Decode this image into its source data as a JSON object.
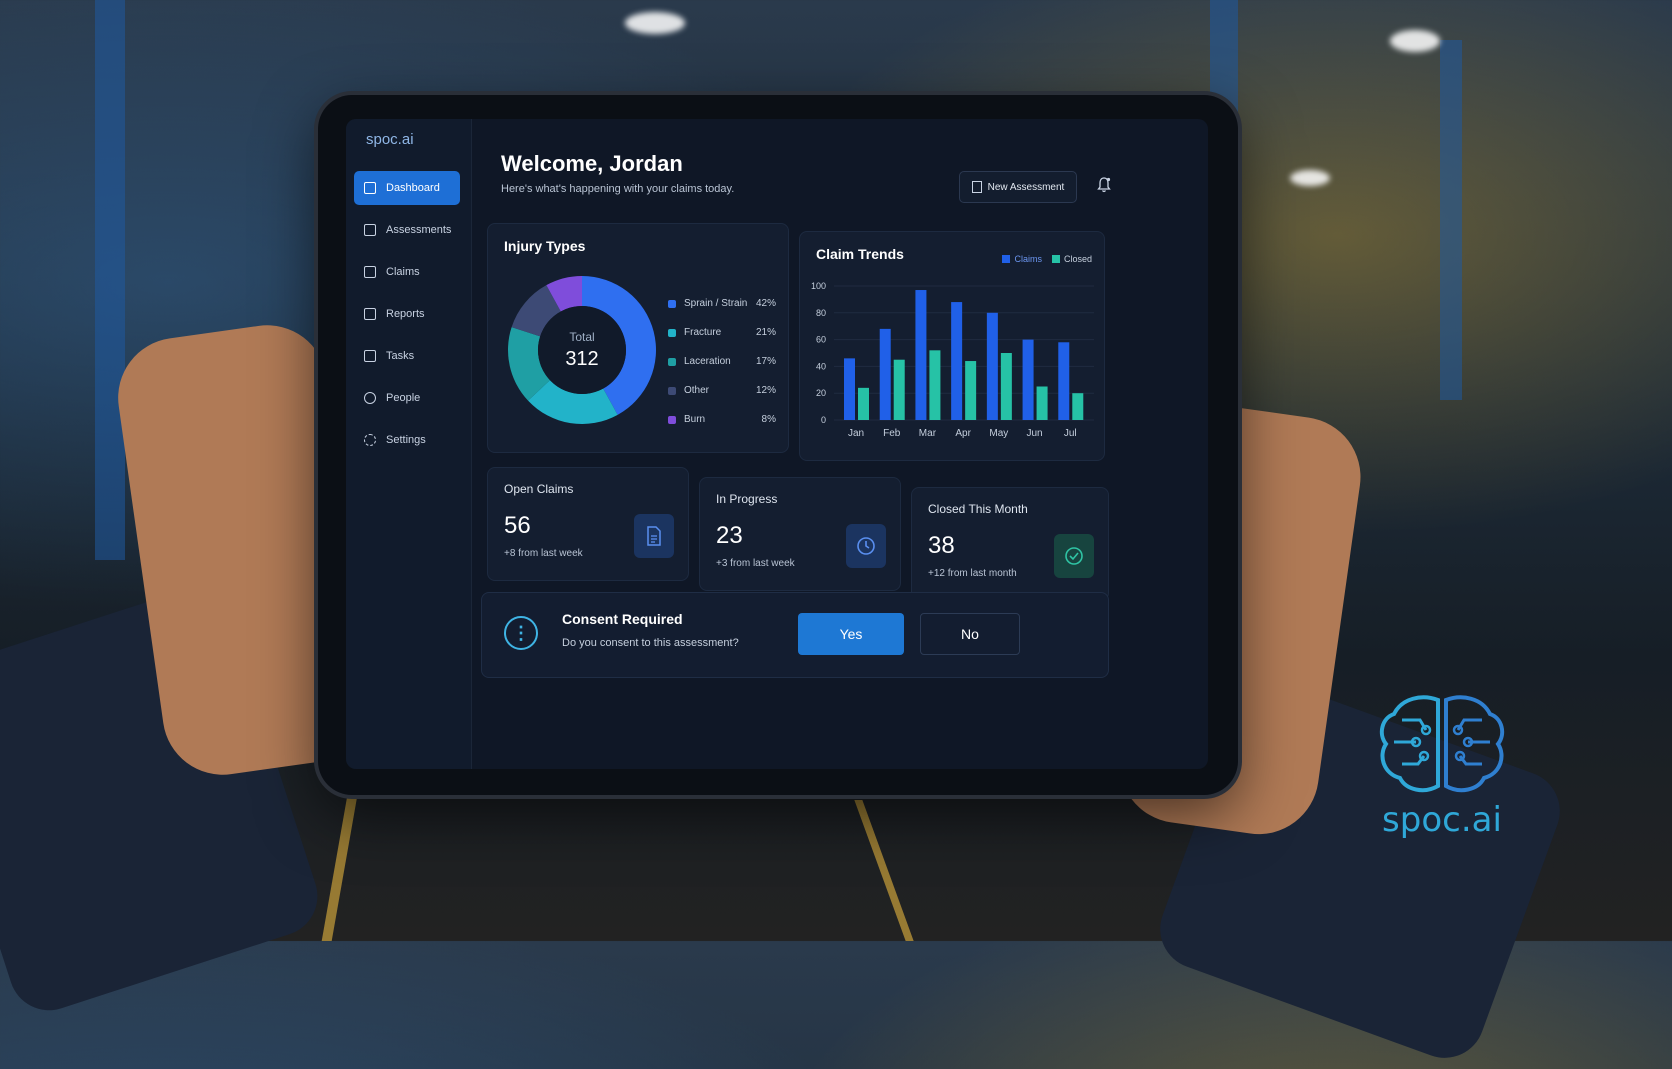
{
  "app": {
    "brand": "spoc.ai",
    "watermark_text": "spoc.ai"
  },
  "sidebar": {
    "items": [
      {
        "label": "Dashboard",
        "icon": "dashboard-icon",
        "active": true
      },
      {
        "label": "Assessments",
        "icon": "clipboard-icon",
        "active": false
      },
      {
        "label": "Claims",
        "icon": "file-icon",
        "active": false
      },
      {
        "label": "Reports",
        "icon": "report-icon",
        "active": false
      },
      {
        "label": "Tasks",
        "icon": "checklist-icon",
        "active": false
      },
      {
        "label": "People",
        "icon": "person-icon",
        "active": false
      },
      {
        "label": "Settings",
        "icon": "gear-icon",
        "active": false
      }
    ]
  },
  "header": {
    "title": "Welcome, Jordan",
    "subtitle": "Here's what's happening with your claims today.",
    "new_assessment_label": "New Assessment"
  },
  "injury_types": {
    "title": "Injury Types",
    "total_label": "Total",
    "total_value": "312",
    "items": [
      {
        "label": "Sprain / Strain",
        "pct": "42%",
        "color": "#2f6ff0"
      },
      {
        "label": "Fracture",
        "pct": "21%",
        "color": "#22b3c9"
      },
      {
        "label": "Laceration",
        "pct": "17%",
        "color": "#1f9fa4"
      },
      {
        "label": "Other",
        "pct": "12%",
        "color": "#3d4a75"
      },
      {
        "label": "Burn",
        "pct": "8%",
        "color": "#7f4ddb"
      }
    ]
  },
  "claim_trends": {
    "title": "Claim Trends",
    "legend": [
      "Claims",
      "Closed"
    ]
  },
  "chart_data": [
    {
      "type": "pie",
      "title": "Injury Types",
      "categories": [
        "Sprain / Strain",
        "Fracture",
        "Laceration",
        "Other",
        "Burn"
      ],
      "values": [
        42,
        21,
        17,
        12,
        8
      ],
      "colors": [
        "#2f6ff0",
        "#22b3c9",
        "#1f9fa4",
        "#3d4a75",
        "#7f4ddb"
      ]
    },
    {
      "type": "bar",
      "title": "Claim Trends",
      "categories": [
        "Jan",
        "Feb",
        "Mar",
        "Apr",
        "May",
        "Jun",
        "Jul"
      ],
      "series": [
        {
          "name": "Claims",
          "values": [
            46,
            68,
            97,
            88,
            80,
            60,
            58
          ],
          "color": "#2060e8"
        },
        {
          "name": "Closed",
          "values": [
            24,
            45,
            52,
            44,
            50,
            25,
            20
          ],
          "color": "#26c2a6"
        }
      ],
      "yticks": [
        "0",
        "20",
        "40",
        "60",
        "80",
        "100"
      ],
      "ylim": [
        0,
        100
      ],
      "grid": true,
      "legend_position": "top-right"
    }
  ],
  "stats": [
    {
      "label": "Open Claims",
      "value": "56",
      "change": "+8 from last week",
      "icon": "document-icon",
      "icon_bg": "#1b3460",
      "icon_color": "#5a8ff0"
    },
    {
      "label": "In Progress",
      "value": "23",
      "change": "+3 from last week",
      "icon": "clock-icon",
      "icon_bg": "#1b3460",
      "icon_color": "#5a8ff0"
    },
    {
      "label": "Closed This Month",
      "value": "38",
      "change": "+12 from last month",
      "icon": "check-circle-icon",
      "icon_bg": "#17443f",
      "icon_color": "#2fc4a4"
    }
  ],
  "consent": {
    "title": "Consent Required",
    "text": "Do you consent to this assessment?",
    "yes_label": "Yes",
    "no_label": "No"
  }
}
